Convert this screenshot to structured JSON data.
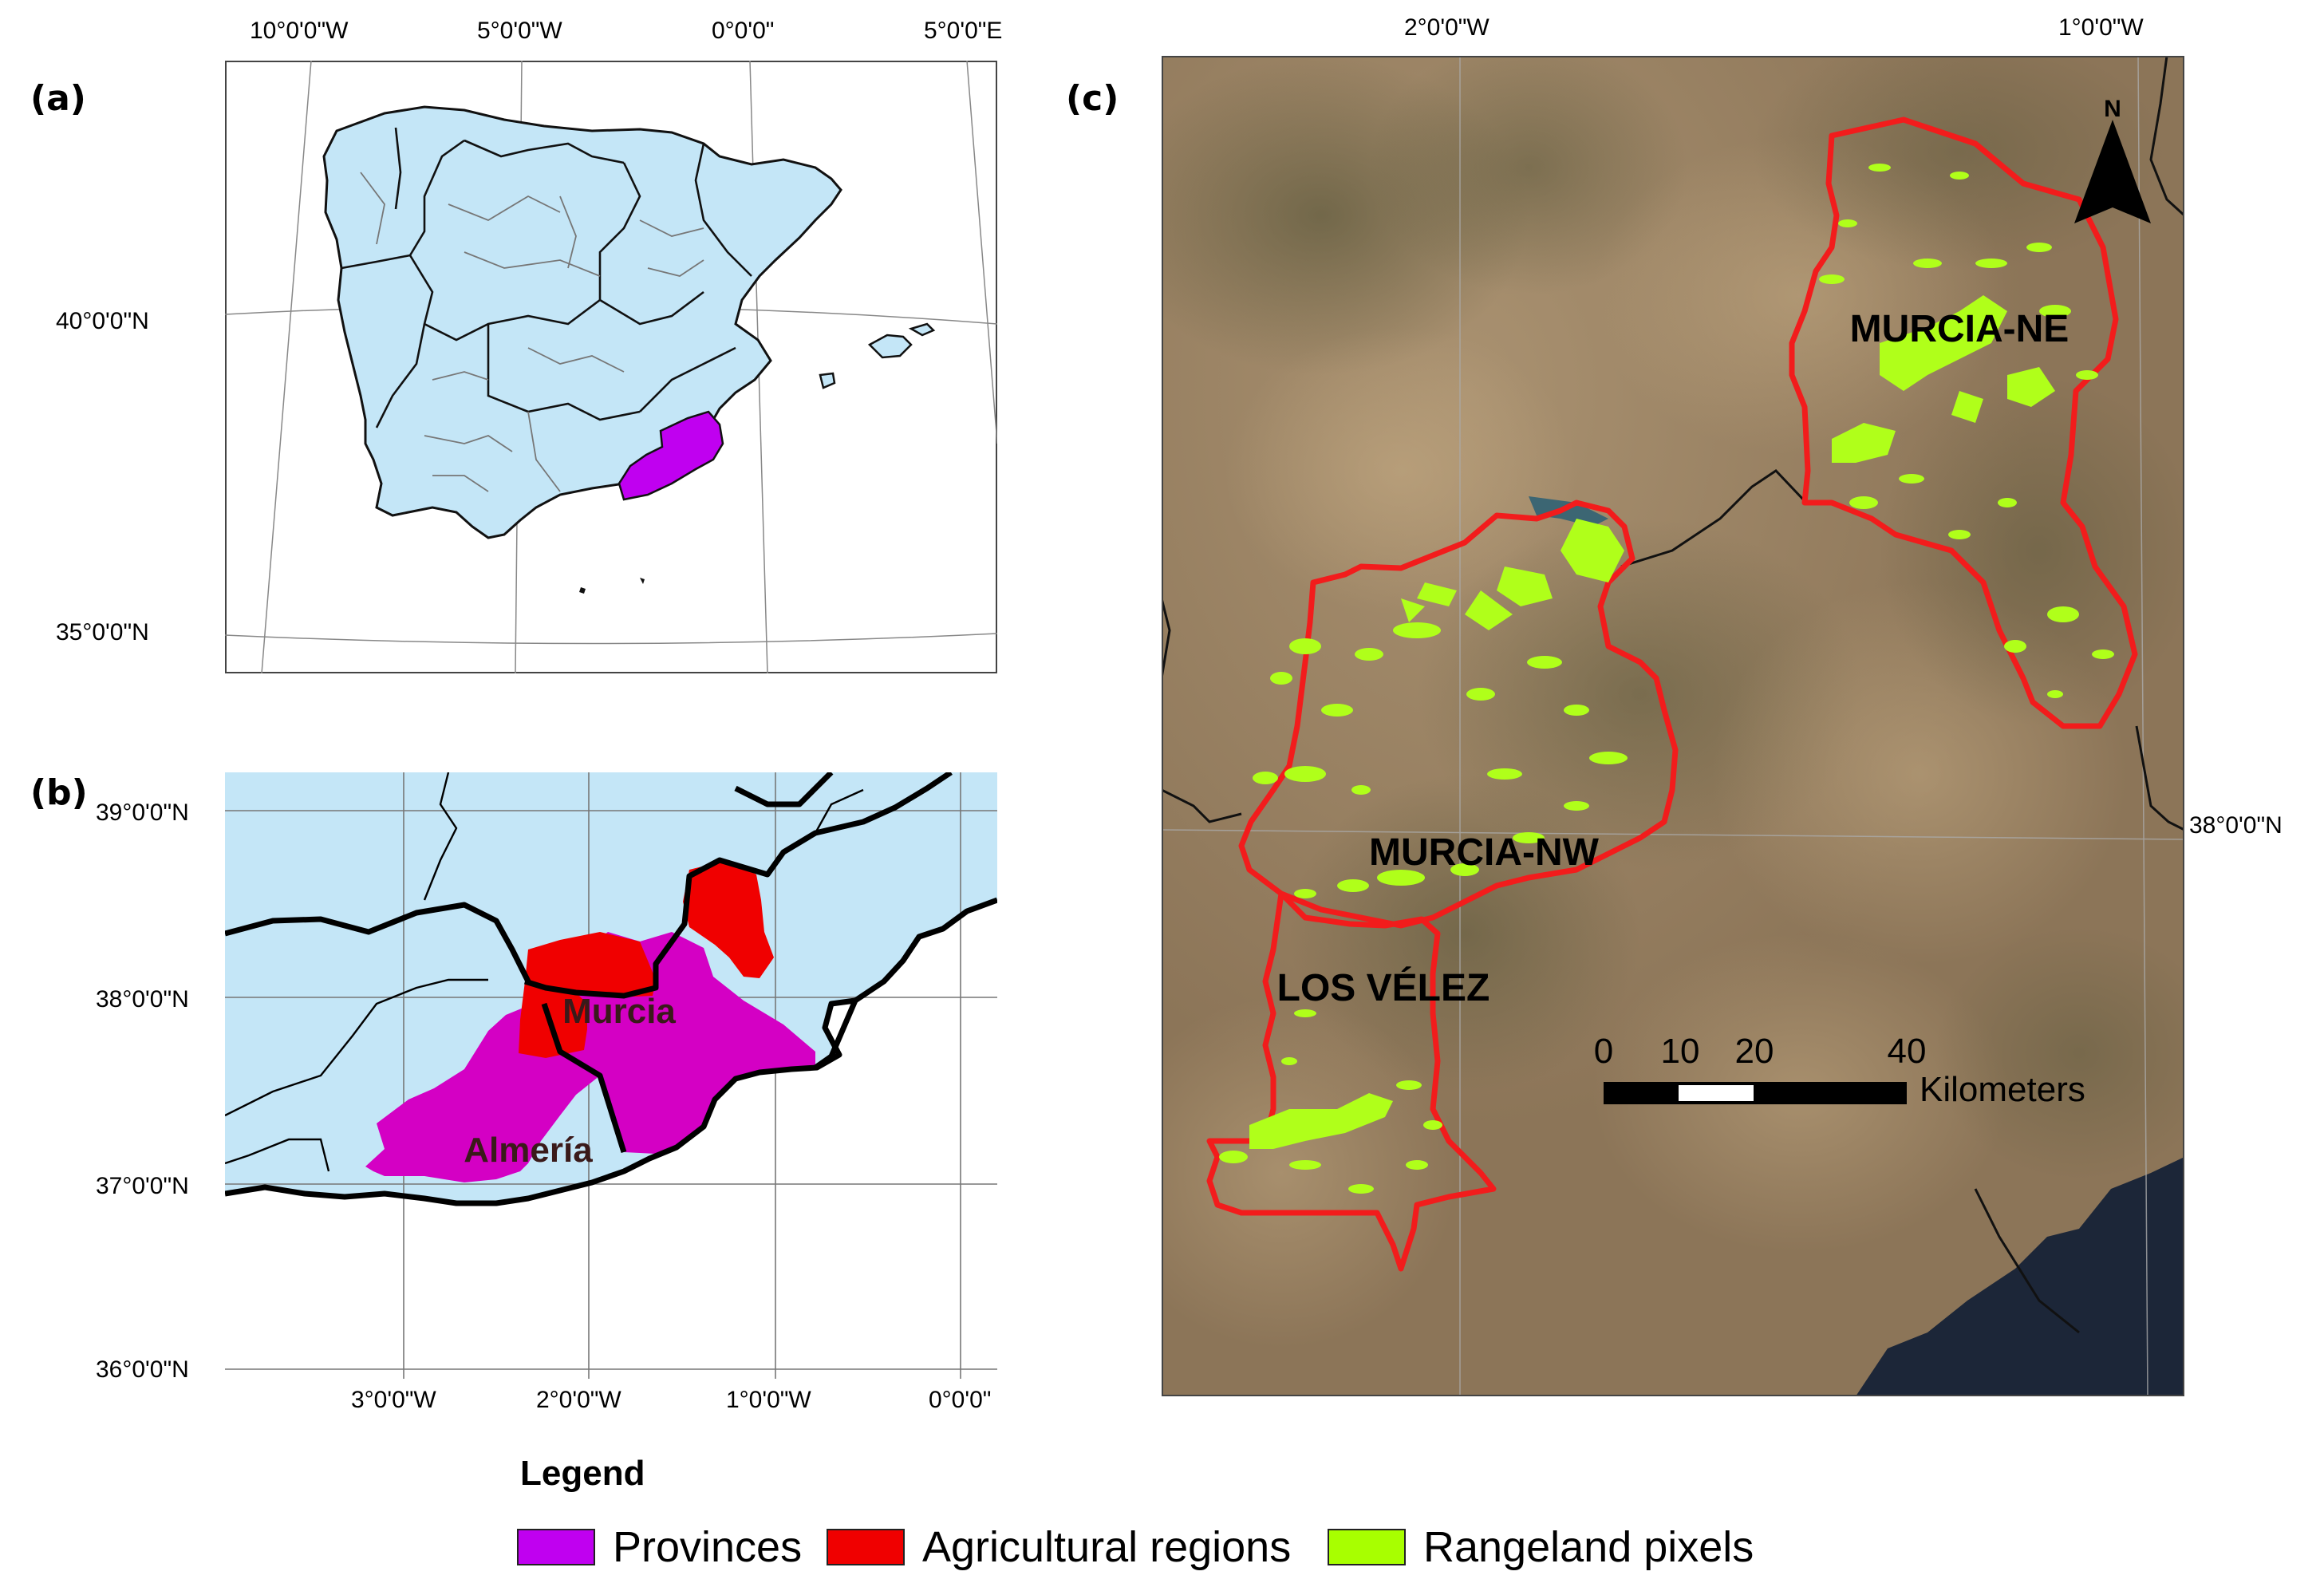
{
  "panels": {
    "a": {
      "label": "(a)",
      "lon_ticks": [
        "10°0'0\"W",
        "5°0'0\"W",
        "0°0'0\"",
        "5°0'0\"E"
      ],
      "lat_ticks": [
        "40°0'0\"N",
        "35°0'0\"N"
      ],
      "highlight": "Murcia and Almería provinces"
    },
    "b": {
      "label": "(b)",
      "lon_ticks": [
        "3°0'0\"W",
        "2°0'0\"W",
        "1°0'0\"W",
        "0°0'0\""
      ],
      "lat_ticks": [
        "39°0'0\"N",
        "38°0'0\"N",
        "37°0'0\"N",
        "36°0'0\"N"
      ],
      "province_labels": [
        "Murcia",
        "Almería"
      ]
    },
    "c": {
      "label": "(c)",
      "lon_ticks": [
        "2°0'0\"W",
        "1°0'0\"W"
      ],
      "lat_ticks": [
        "38°0'0\"N"
      ],
      "region_labels": [
        "MURCIA-NE",
        "MURCIA-NW",
        "LOS VÉLEZ"
      ],
      "scale_bar": {
        "ticks": [
          "0",
          "10",
          "20",
          "40"
        ],
        "unit": "Kilometers"
      },
      "north_arrow_label": "N"
    }
  },
  "legend": {
    "title": "Legend",
    "items": [
      {
        "label": "Provinces",
        "color": "#c000f0"
      },
      {
        "label": "Agricultural regions",
        "color": "#f00000"
      },
      {
        "label": "Rangeland pixels",
        "color": "#a8ff00"
      }
    ]
  },
  "colors": {
    "land": "#c4e6f7",
    "sea": "#ffffff",
    "province_fill": "#d400d4",
    "agri_region": "#f00000",
    "region_outline": "#f21c1c",
    "rangeland": "#b0ff1a",
    "satellite_base": "#8c7558"
  }
}
